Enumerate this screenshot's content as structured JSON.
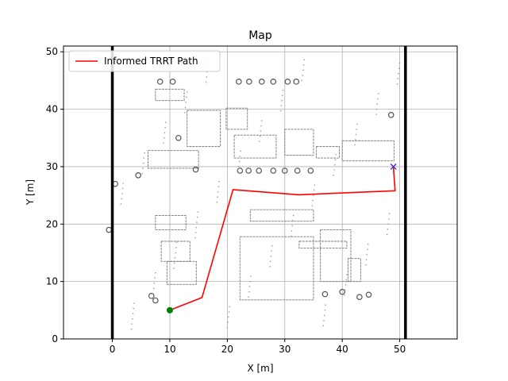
{
  "chart_data": {
    "type": "line",
    "title": "Map",
    "xlabel": "X [m]",
    "ylabel": "Y [m]",
    "xlim": [
      -8.5,
      60.0
    ],
    "ylim": [
      0,
      51
    ],
    "xticks": [
      0,
      10,
      20,
      30,
      40,
      50
    ],
    "yticks": [
      0,
      10,
      20,
      30,
      40,
      50
    ],
    "grid": true,
    "legend": {
      "position": "top-left",
      "entries": [
        "Informed TRRT Path"
      ]
    },
    "series": [
      {
        "name": "Informed TRRT Path",
        "color": "#ff0000",
        "style": "line",
        "x": [
          10.0,
          15.6,
          21.0,
          32.5,
          49.2,
          48.9
        ],
        "y": [
          5.0,
          7.2,
          26.0,
          25.1,
          25.8,
          30.0
        ]
      }
    ],
    "markers": {
      "start": {
        "x": 10.0,
        "y": 5.0,
        "color": "#008000",
        "shape": "circle"
      },
      "goal": {
        "x": 48.9,
        "y": 30.0,
        "color": "#3a2bd0",
        "shape": "x"
      }
    },
    "boundary_walls": {
      "x": [
        0,
        51
      ],
      "color": "#000000"
    },
    "background": "occupancy map (grey building outlines and obstacles)"
  }
}
